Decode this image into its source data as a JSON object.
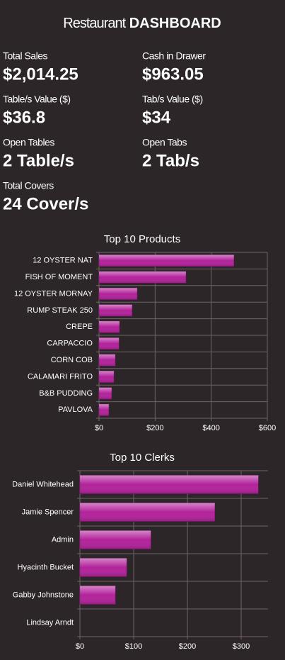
{
  "header": {
    "title_prefix": "Restaurant",
    "title_main": "DASHBOARD"
  },
  "stats": [
    {
      "label": "Total Sales",
      "value": "$2,014.25"
    },
    {
      "label": "Cash in Drawer",
      "value": "$963.05"
    },
    {
      "label": "Table/s Value ($)",
      "value": "$36.8"
    },
    {
      "label": "Tab/s Value ($)",
      "value": "$34"
    },
    {
      "label": "Open Tables",
      "value": "2 Table/s"
    },
    {
      "label": "Open Tabs",
      "value": "2 Tab/s"
    },
    {
      "label": "Total Covers",
      "value": "24 Cover/s"
    }
  ],
  "chart_data": [
    {
      "type": "barh",
      "title": "Top 10 Products",
      "color": "#b3229b",
      "grid": true,
      "categories": [
        "12 OYSTER NAT",
        "FISH OF MOMENT",
        "12 OYSTER MORNAY",
        "RUMP STEAK 250",
        "CREPE",
        "CARPACCIO",
        "CORN COB",
        "CALAMARI FRITO",
        "B&B PUDDING",
        "PAVLOVA"
      ],
      "values": [
        481,
        310,
        136,
        118,
        73,
        71,
        58,
        53,
        45,
        35
      ],
      "xlim": [
        0,
        600
      ],
      "xticks": [
        {
          "value": 0,
          "label": "$0"
        },
        {
          "value": 200,
          "label": "$200"
        },
        {
          "value": 400,
          "label": "$400"
        },
        {
          "value": 600,
          "label": "$600"
        }
      ]
    },
    {
      "type": "barh",
      "title": "Top 10 Clerks",
      "color": "#b3229b",
      "grid": true,
      "categories": [
        "Daniel Whitehead",
        "Jamie Spencer",
        "Admin",
        "Hyacinth Bucket",
        "Gabby Johnstone",
        "Lindsay Arndt"
      ],
      "values": [
        332,
        251,
        132,
        87,
        66,
        0
      ],
      "xlim": [
        0,
        350
      ],
      "xticks": [
        {
          "value": 0,
          "label": "$0"
        },
        {
          "value": 100,
          "label": "$100"
        },
        {
          "value": 200,
          "label": "$200"
        },
        {
          "value": 300,
          "label": "$300"
        }
      ]
    }
  ]
}
